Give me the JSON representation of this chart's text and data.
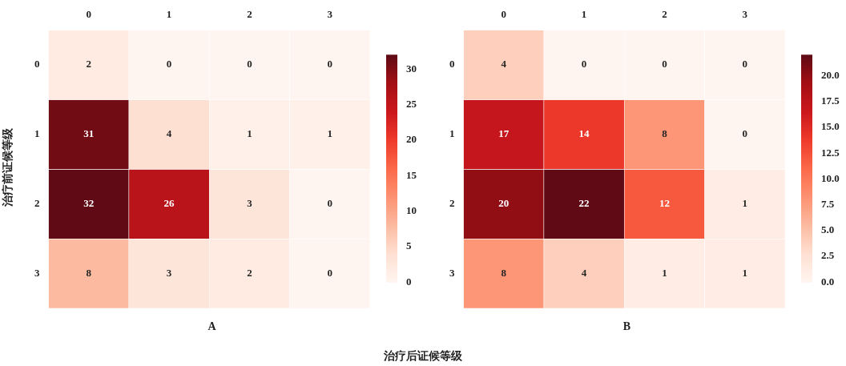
{
  "chart_data": [
    {
      "type": "heatmap",
      "title": "A",
      "ylabel": "治疗前证候等级",
      "xlabel": "治疗后证候等级",
      "categories": [
        "0",
        "1",
        "2",
        "3"
      ],
      "y_categories": [
        "0",
        "1",
        "2",
        "3"
      ],
      "cells": [
        [
          2,
          0,
          0,
          0
        ],
        [
          31,
          4,
          1,
          1
        ],
        [
          32,
          26,
          3,
          0
        ],
        [
          8,
          3,
          2,
          0
        ]
      ],
      "clim": [
        0,
        32
      ],
      "cticks": [
        0,
        5,
        10,
        15,
        20,
        25,
        30
      ],
      "data_labels": true
    },
    {
      "type": "heatmap",
      "title": "B",
      "categories": [
        "0",
        "1",
        "2",
        "3"
      ],
      "y_categories": [
        "0",
        "1",
        "2",
        "3"
      ],
      "cells": [
        [
          4,
          0,
          0,
          0
        ],
        [
          17,
          14,
          8,
          0
        ],
        [
          20,
          22,
          12,
          1
        ],
        [
          8,
          4,
          1,
          1
        ]
      ],
      "clim": [
        0,
        22
      ],
      "cticks": [
        {
          "value": 0,
          "label": "0.0"
        },
        {
          "value": 2.5,
          "label": "2.5"
        },
        {
          "value": 5,
          "label": "5.0"
        },
        {
          "value": 7.5,
          "label": "7.5"
        },
        {
          "value": 10,
          "label": "10.0"
        },
        {
          "value": 12.5,
          "label": "12.5"
        },
        {
          "value": 15,
          "label": "15.0"
        },
        {
          "value": 17.5,
          "label": "17.5"
        },
        {
          "value": 20,
          "label": "20.0"
        }
      ],
      "data_labels": true
    }
  ]
}
